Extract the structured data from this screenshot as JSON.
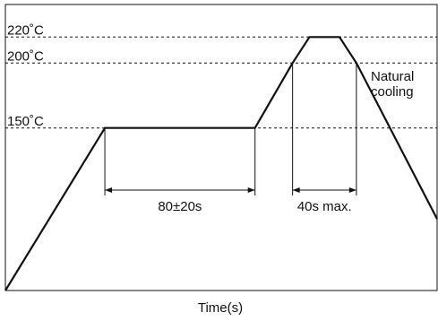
{
  "chart_data": {
    "type": "line",
    "title": "",
    "xlabel": "Time(s)",
    "ylabel": "",
    "y_tick_labels": [
      "220˚C",
      "200˚C",
      "150˚C"
    ],
    "series": [
      {
        "points": [
          {
            "t": 0,
            "temp": 25
          },
          {
            "t": 53,
            "temp": 150
          },
          {
            "t": 133,
            "temp": 150
          },
          {
            "t": 153,
            "temp": 200
          },
          {
            "t": 162,
            "temp": 220
          },
          {
            "t": 178,
            "temp": 220
          },
          {
            "t": 187,
            "temp": 200
          },
          {
            "t": 230,
            "temp": 80
          }
        ]
      }
    ],
    "annotations": {
      "preheat_duration": "80±20s",
      "peak_duration": "40s max.",
      "cooling_note_line1": "Natural",
      "cooling_note_line2": "cooling"
    },
    "xlim": [
      0,
      230
    ],
    "ylim": [
      25,
      245
    ],
    "grid": false
  }
}
